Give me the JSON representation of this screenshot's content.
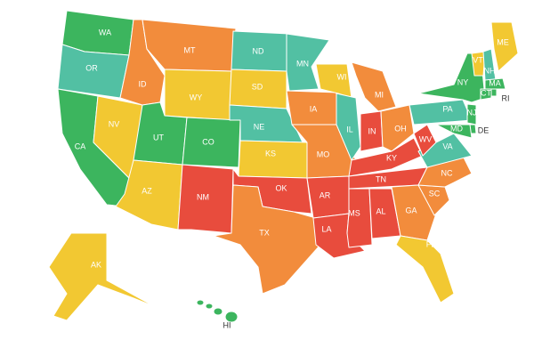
{
  "states": [
    {
      "label": "WA",
      "color": "#3cb55e"
    },
    {
      "label": "OR",
      "color": "#52c0a3"
    },
    {
      "label": "CA",
      "color": "#3cb55e"
    },
    {
      "label": "NV",
      "color": "#f2c832"
    },
    {
      "label": "ID",
      "color": "#f28c3c"
    },
    {
      "label": "MT",
      "color": "#f28c3c"
    },
    {
      "label": "WY",
      "color": "#f2c832"
    },
    {
      "label": "UT",
      "color": "#3cb55e"
    },
    {
      "label": "CO",
      "color": "#3cb55e"
    },
    {
      "label": "AZ",
      "color": "#f2c832"
    },
    {
      "label": "NM",
      "color": "#e84c3d"
    },
    {
      "label": "ND",
      "color": "#52c0a3"
    },
    {
      "label": "SD",
      "color": "#f2c832"
    },
    {
      "label": "NE",
      "color": "#52c0a3"
    },
    {
      "label": "KS",
      "color": "#f2c832"
    },
    {
      "label": "OK",
      "color": "#e84c3d"
    },
    {
      "label": "TX",
      "color": "#f28c3c"
    },
    {
      "label": "MN",
      "color": "#52c0a3"
    },
    {
      "label": "IA",
      "color": "#f28c3c"
    },
    {
      "label": "MO",
      "color": "#f28c3c"
    },
    {
      "label": "AR",
      "color": "#e84c3d"
    },
    {
      "label": "LA",
      "color": "#e84c3d"
    },
    {
      "label": "WI",
      "color": "#f2c832"
    },
    {
      "label": "IL",
      "color": "#52c0a3"
    },
    {
      "label": "MI",
      "color": "#f28c3c"
    },
    {
      "label": "IN",
      "color": "#e84c3d"
    },
    {
      "label": "OH",
      "color": "#f28c3c"
    },
    {
      "label": "KY",
      "color": "#e84c3d"
    },
    {
      "label": "TN",
      "color": "#e84c3d"
    },
    {
      "label": "MS",
      "color": "#e84c3d"
    },
    {
      "label": "AL",
      "color": "#e84c3d"
    },
    {
      "label": "GA",
      "color": "#f28c3c"
    },
    {
      "label": "FL",
      "color": "#f2c832"
    },
    {
      "label": "SC",
      "color": "#f28c3c"
    },
    {
      "label": "NC",
      "color": "#f28c3c"
    },
    {
      "label": "VA",
      "color": "#52c0a3"
    },
    {
      "label": "WV",
      "color": "#e84c3d"
    },
    {
      "label": "PA",
      "color": "#52c0a3"
    },
    {
      "label": "NY",
      "color": "#3cb55e"
    },
    {
      "label": "VT",
      "color": "#f2c832"
    },
    {
      "label": "NH",
      "color": "#52c0a3"
    },
    {
      "label": "ME",
      "color": "#f2c832"
    },
    {
      "label": "MA",
      "color": "#3cb55e"
    },
    {
      "label": "CT",
      "color": "#3cb55e"
    },
    {
      "label": "RI",
      "color": "#3cb55e"
    },
    {
      "label": "NJ",
      "color": "#3cb55e"
    },
    {
      "label": "DE",
      "color": "#3cb55e"
    },
    {
      "label": "MD",
      "color": "#3cb55e"
    },
    {
      "label": "AK",
      "color": "#f2c832"
    },
    {
      "label": "HI",
      "color": "#3cb55e"
    }
  ]
}
